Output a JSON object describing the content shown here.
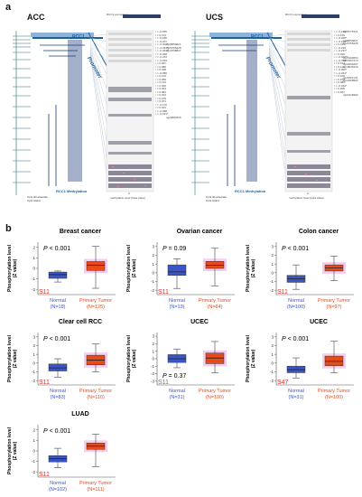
{
  "panel_a": {
    "letter": "a",
    "acc": {
      "title": "ACC",
      "expression_label": "RCC1 expression",
      "gene_label": "RCC1",
      "promoter_label": "Promoter",
      "methylation_label": "RCC1 Methylation",
      "axis_label": "methylation level (beta value)",
      "axis_zero": "0",
      "legend": [
        "CpG dinucleotide",
        "CpG island",
        "gene",
        "transcript"
      ],
      "r_values": [
        "r = -0.055",
        "r = 0.074",
        "r = -0.186",
        "r = -0.207",
        "r = -0.302*",
        "r = -0.357**",
        "r = -0.361**",
        "r = -0.028",
        "r = -0.213",
        "r = -0.034",
        "r = 0.007",
        "r = 0.080",
        "r = 0.038",
        "r = -0.089",
        "r = 0.143",
        "r = 0.059",
        "r = 0.134",
        "r = 0.025",
        "r = 0.024",
        "r = 0.081",
        "r = 0.013",
        "r = 0.079",
        "r = 0.071",
        "r = -0.170",
        "r = 0.021",
        "r = -0.098",
        "r = -0.221*"
      ],
      "probes": [
        "cg08659021",
        "cg26765228",
        "cg10768847",
        "cg22683416"
      ]
    },
    "ucs": {
      "title": "UCS",
      "expression_label": "RCC1 expression",
      "gene_label": "RCC1",
      "promoter_label": "Promoter",
      "methylation_label": "RCC1 Methylation",
      "axis_label": "methylation level (beta value)",
      "axis_zero": "0",
      "legend": [
        "CpG dinucleotide",
        "CpG island",
        "gene",
        "transcript"
      ],
      "r_values": [
        "r = -0.279*",
        "r = 0.109",
        "r = -0.308*",
        "r = -0.410**",
        "r = 0.076",
        "r = -0.228",
        "r = -0.237*",
        "r = 0.096",
        "r = -0.402**",
        "r = -0.358*",
        "r = 0.014",
        "r = 0.106",
        "r = -0.306*",
        "r = -0.264*",
        "r = 0.106",
        "r = 0.078",
        "r = 0.080",
        "r = -0.342*",
        "r = 0.005",
        "r = 0.067"
      ],
      "probes": [
        "cg25775721",
        "cg08659021",
        "cg26765228",
        "cg25163654",
        "cg07607470",
        "cg02090267",
        "cg19635133",
        "cg21821176",
        "cg10168902",
        "cg04216992"
      ]
    }
  },
  "panel_b": {
    "letter": "b",
    "ylabel_line1": "Phosphorylation level",
    "ylabel_line2": "(Z value)",
    "normal_label": "Normal",
    "tumor_label": "Primary Tumor",
    "colors": {
      "normal": "#3a55c8",
      "tumor": "#e84a1a",
      "tumor_bg": "#f4b6e6",
      "site": "#d32f2f"
    },
    "plots": [
      {
        "title": "Breast cancer",
        "p_prefix": "P",
        "p_value": " < 0.001",
        "site": "S11",
        "normal_n": "(N=18)",
        "tumor_n": "(N=125)",
        "yticks": [
          "-2",
          "-1",
          "0",
          "1",
          "2"
        ]
      },
      {
        "title": "Ovarian cancer",
        "p_prefix": "P",
        "p_value": " = 0.09",
        "site": "S11",
        "normal_n": "(N=19)",
        "tumor_n": "(N=84)",
        "yticks": [
          "-2",
          "-1",
          "0",
          "1",
          "2",
          "3"
        ]
      },
      {
        "title": "Colon cancer",
        "p_prefix": "P",
        "p_value": " < 0.001",
        "site": "S11",
        "normal_n": "(N=100)",
        "tumor_n": "(N=97)",
        "yticks": [
          "-2",
          "-1",
          "0",
          "1",
          "2",
          "3"
        ]
      },
      {
        "title": "Clear cell RCC",
        "p_prefix": "P",
        "p_value": " < 0.001",
        "site": "S11",
        "normal_n": "(N=83)",
        "tumor_n": "(N=110)",
        "yticks": [
          "-2",
          "-1",
          "0",
          "1",
          "2",
          "3"
        ]
      },
      {
        "title": "UCEC",
        "p_prefix": "P",
        "p_value": " = 0.37",
        "site": "S11",
        "normal_n": "(N=31)",
        "tumor_n": "(N=100)",
        "yticks": [
          "-3",
          "-2",
          "-1",
          "0",
          "1",
          "2",
          "3"
        ]
      },
      {
        "title": "UCEC",
        "p_prefix": "P",
        "p_value": " < 0.001",
        "site": "S47",
        "normal_n": "(N=31)",
        "tumor_n": "(N=100)",
        "yticks": [
          "-2",
          "-1",
          "0",
          "1",
          "2",
          "3"
        ]
      },
      {
        "title": "LUAD",
        "p_prefix": "P",
        "p_value": " < 0.001",
        "site": "S11",
        "normal_n": "(N=102)",
        "tumor_n": "(N=111)",
        "yticks": [
          "-2",
          "-1",
          "0",
          "1",
          "2"
        ]
      }
    ]
  },
  "chart_data": [
    {
      "type": "box",
      "title": "Breast cancer",
      "categories": [
        "Normal",
        "Primary Tumor"
      ],
      "ylabel": "Phosphorylation level (Z value)",
      "ylim": [
        -2.5,
        2.5
      ],
      "boxes": [
        {
          "min": -1.3,
          "q1": -0.95,
          "median": -0.6,
          "q3": -0.35,
          "max": -0.25
        },
        {
          "min": -1.9,
          "q1": -0.2,
          "median": 0.3,
          "q3": 0.65,
          "max": 2.1
        }
      ]
    },
    {
      "type": "box",
      "title": "Ovarian cancer",
      "categories": [
        "Normal",
        "Primary Tumor"
      ],
      "ylabel": "Phosphorylation level (Z value)",
      "ylim": [
        -2.5,
        3.5
      ],
      "boxes": [
        {
          "min": -1.8,
          "q1": -0.3,
          "median": 0.1,
          "q3": 0.9,
          "max": 1.6
        },
        {
          "min": -1.5,
          "q1": 0.5,
          "median": 0.85,
          "q3": 1.3,
          "max": 2.8
        }
      ]
    },
    {
      "type": "box",
      "title": "Colon cancer",
      "categories": [
        "Normal",
        "Primary Tumor"
      ],
      "ylabel": "Phosphorylation level (Z value)",
      "ylim": [
        -2.5,
        3.5
      ],
      "boxes": [
        {
          "min": -1.9,
          "q1": -1.1,
          "median": -0.7,
          "q3": -0.3,
          "max": 0.9
        },
        {
          "min": -0.9,
          "q1": 0.2,
          "median": 0.55,
          "q3": 0.9,
          "max": 1.9
        }
      ]
    },
    {
      "type": "box",
      "title": "Clear cell RCC",
      "categories": [
        "Normal",
        "Primary Tumor"
      ],
      "ylabel": "Phosphorylation level (Z value)",
      "ylim": [
        -2.5,
        3.5
      ],
      "boxes": [
        {
          "min": -1.6,
          "q1": -0.9,
          "median": -0.55,
          "q3": -0.1,
          "max": 0.5
        },
        {
          "min": -1.0,
          "q1": -0.2,
          "median": 0.35,
          "q3": 0.9,
          "max": 2.2
        }
      ]
    },
    {
      "type": "box",
      "title": "UCEC",
      "categories": [
        "Normal",
        "Primary Tumor"
      ],
      "ylabel": "Phosphorylation level (Z value)",
      "ylim": [
        -3.5,
        3.5
      ],
      "boxes": [
        {
          "min": -1.2,
          "q1": -0.5,
          "median": 0.0,
          "q3": 0.55,
          "max": 1.3
        },
        {
          "min": -1.9,
          "q1": -0.65,
          "median": 0.1,
          "q3": 0.75,
          "max": 2.3
        }
      ]
    },
    {
      "type": "box",
      "title": "UCEC",
      "categories": [
        "Normal",
        "Primary Tumor"
      ],
      "ylabel": "Phosphorylation level (Z value)",
      "ylim": [
        -2.5,
        3.5
      ],
      "boxes": [
        {
          "min": -1.7,
          "q1": -1.1,
          "median": -0.75,
          "q3": -0.35,
          "max": 0.6
        },
        {
          "min": -1.1,
          "q1": -0.3,
          "median": 0.2,
          "q3": 0.8,
          "max": 2.5
        }
      ]
    },
    {
      "type": "box",
      "title": "LUAD",
      "categories": [
        "Normal",
        "Primary Tumor"
      ],
      "ylabel": "Phosphorylation level (Z value)",
      "ylim": [
        -2.5,
        2.5
      ],
      "boxes": [
        {
          "min": -1.6,
          "q1": -1.05,
          "median": -0.75,
          "q3": -0.45,
          "max": 0.25
        },
        {
          "min": -1.5,
          "q1": 0.15,
          "median": 0.45,
          "q3": 0.75,
          "max": 1.6
        }
      ]
    }
  ]
}
